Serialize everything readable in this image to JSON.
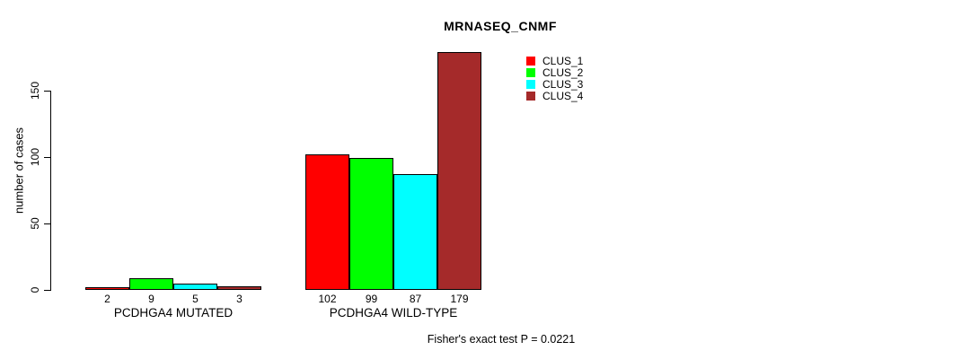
{
  "title": "MRNASEQ_CNMF",
  "chart_data": {
    "type": "bar",
    "title": "MRNASEQ_CNMF",
    "xlabel": "",
    "ylabel": "number of cases",
    "ylim": [
      0,
      180
    ],
    "yticks": [
      0,
      50,
      100,
      150
    ],
    "grid": false,
    "legend_position": "top-right",
    "categories": [
      "PCDHGA4 MUTATED",
      "PCDHGA4 WILD-TYPE"
    ],
    "series": [
      {
        "name": "CLUS_1",
        "color": "#ff0000",
        "values": [
          2,
          102
        ]
      },
      {
        "name": "CLUS_2",
        "color": "#00ff00",
        "values": [
          9,
          99
        ]
      },
      {
        "name": "CLUS_3",
        "color": "#00ffff",
        "values": [
          5,
          87
        ]
      },
      {
        "name": "CLUS_4",
        "color": "#a52a2a",
        "values": [
          3,
          179
        ]
      }
    ],
    "bar_value_labels_shown": true,
    "annotation": "Fisher's exact test P = 0.0221"
  },
  "colors": {
    "background": "#ffffff",
    "axis": "#000000",
    "text": "#000000",
    "bar_border": "#000000"
  }
}
